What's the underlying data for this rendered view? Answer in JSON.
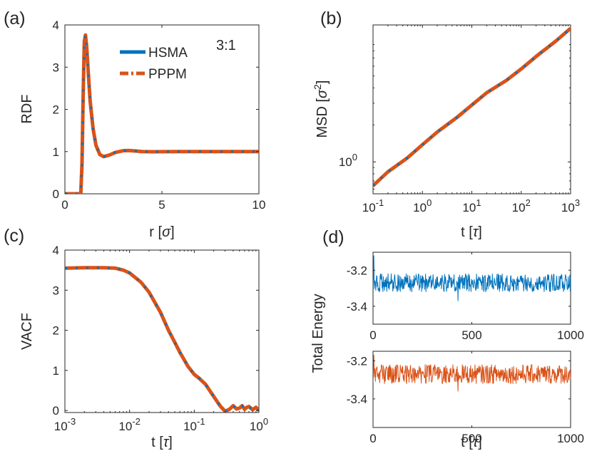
{
  "colors": {
    "hsma": "#0072BD",
    "pppm": "#D95319",
    "axis": "#262626"
  },
  "chart_data": [
    {
      "id": "a",
      "panel_label": "(a)",
      "type": "line",
      "annotation": "3:1",
      "xlabel_text": "r ",
      "xunit": "σ",
      "ylabel": "RDF",
      "xlim": [
        0,
        10
      ],
      "ylim": [
        0,
        4
      ],
      "xticks": [
        0,
        5,
        10
      ],
      "xtick_labels": [
        "0",
        "5",
        "10"
      ],
      "yticks": [
        0,
        1,
        2,
        3,
        4
      ],
      "ytick_labels": [
        "0",
        "1",
        "2",
        "3",
        "4"
      ],
      "legend": [
        "HSMA",
        "PPPM"
      ],
      "legend_position": "top-right",
      "series": [
        {
          "name": "PPPM",
          "style": "dashdot",
          "x": [
            0,
            0.7,
            0.82,
            0.88,
            0.94,
            1.0,
            1.06,
            1.12,
            1.2,
            1.3,
            1.45,
            1.6,
            1.8,
            2.0,
            2.3,
            2.6,
            3.0,
            3.3,
            3.6,
            4.0,
            4.5,
            5.0,
            6.0,
            7.0,
            8.0,
            9.0,
            10.0
          ],
          "y": [
            0,
            0,
            0.02,
            0.7,
            2.3,
            3.6,
            3.76,
            3.5,
            2.9,
            2.2,
            1.55,
            1.15,
            0.93,
            0.88,
            0.92,
            0.98,
            1.02,
            1.025,
            1.015,
            1.0,
            0.995,
            0.998,
            1.0,
            1.0,
            1.0,
            1.0,
            1.0
          ]
        },
        {
          "name": "HSMA",
          "style": "dotted",
          "x": [
            0,
            0.7,
            0.82,
            0.88,
            0.94,
            1.0,
            1.06,
            1.12,
            1.2,
            1.3,
            1.45,
            1.6,
            1.8,
            2.0,
            2.3,
            2.6,
            3.0,
            3.3,
            3.6,
            4.0,
            4.5,
            5.0,
            6.0,
            7.0,
            8.0,
            9.0,
            10.0
          ],
          "y": [
            0,
            0,
            0.02,
            0.7,
            2.3,
            3.6,
            3.76,
            3.5,
            2.9,
            2.2,
            1.55,
            1.15,
            0.93,
            0.88,
            0.92,
            0.98,
            1.02,
            1.025,
            1.015,
            1.0,
            0.995,
            0.998,
            1.0,
            1.0,
            1.0,
            1.0,
            1.0
          ]
        }
      ]
    },
    {
      "id": "b",
      "panel_label": "(b)",
      "type": "line",
      "xscale": "log",
      "yscale": "log",
      "xlabel_text": "t ",
      "xunit": "τ",
      "ylabel_text": "MSD ",
      "yunit": "σ",
      "yunit_exp": "2",
      "xlim": [
        0.1,
        1000
      ],
      "ylim": [
        0.55,
        13
      ],
      "xticks": [
        0.1,
        1,
        10,
        100,
        1000
      ],
      "xtick_bases": [
        "10",
        "10",
        "10",
        "10",
        "10"
      ],
      "xtick_exps": [
        "-1",
        "0",
        "1",
        "2",
        "3"
      ],
      "yticks": [
        1
      ],
      "ytick_bases": [
        "10"
      ],
      "ytick_exps": [
        "0"
      ],
      "series": [
        {
          "name": "PPPM",
          "style": "dashdot",
          "x": [
            0.1,
            0.2,
            0.5,
            1,
            2,
            5,
            10,
            20,
            50,
            100,
            200,
            500,
            1000
          ],
          "y": [
            0.64,
            0.83,
            1.08,
            1.38,
            1.75,
            2.3,
            2.9,
            3.65,
            4.6,
            5.7,
            7.2,
            9.6,
            12.2
          ]
        },
        {
          "name": "HSMA",
          "style": "dotted",
          "x": [
            0.1,
            0.2,
            0.5,
            1,
            2,
            5,
            10,
            20,
            50,
            100,
            200,
            500,
            1000
          ],
          "y": [
            0.64,
            0.83,
            1.08,
            1.38,
            1.75,
            2.3,
            2.9,
            3.65,
            4.6,
            5.7,
            7.2,
            9.6,
            12.2
          ]
        }
      ]
    },
    {
      "id": "c",
      "panel_label": "(c)",
      "type": "line",
      "xscale": "log",
      "xlabel_text": "t ",
      "xunit": "τ",
      "ylabel": "VACF",
      "xlim": [
        0.001,
        1
      ],
      "ylim": [
        -0.05,
        4
      ],
      "xticks": [
        0.001,
        0.01,
        0.1,
        1
      ],
      "xtick_bases": [
        "10",
        "10",
        "10",
        "10"
      ],
      "xtick_exps": [
        "-3",
        "-2",
        "-1",
        "0"
      ],
      "yticks": [
        0,
        1,
        2,
        3,
        4
      ],
      "ytick_labels": [
        "0",
        "1",
        "2",
        "3",
        "4"
      ],
      "series": [
        {
          "name": "PPPM",
          "style": "dashdot",
          "x": [
            0.001,
            0.002,
            0.004,
            0.006,
            0.008,
            0.01,
            0.015,
            0.02,
            0.03,
            0.04,
            0.05,
            0.06,
            0.08,
            0.1,
            0.12,
            0.15,
            0.2,
            0.25,
            0.3,
            0.35,
            0.4,
            0.45,
            0.5,
            0.55,
            0.6,
            0.65,
            0.7,
            0.8,
            0.9,
            1.0
          ],
          "y": [
            3.55,
            3.56,
            3.56,
            3.55,
            3.5,
            3.43,
            3.2,
            2.95,
            2.45,
            2.0,
            1.7,
            1.45,
            1.1,
            0.9,
            0.8,
            0.65,
            0.35,
            0.12,
            -0.02,
            0.03,
            0.12,
            0.04,
            0.06,
            0.12,
            0.03,
            0.08,
            0.1,
            0.02,
            0.08,
            0.0
          ]
        },
        {
          "name": "HSMA",
          "style": "dotted",
          "x": [
            0.001,
            0.002,
            0.004,
            0.006,
            0.008,
            0.01,
            0.015,
            0.02,
            0.03,
            0.04,
            0.05,
            0.06,
            0.08,
            0.1,
            0.12,
            0.15,
            0.2,
            0.25,
            0.3,
            0.35,
            0.4,
            0.45,
            0.5,
            0.55,
            0.6,
            0.65,
            0.7,
            0.8,
            0.9,
            1.0
          ],
          "y": [
            3.55,
            3.56,
            3.56,
            3.55,
            3.5,
            3.43,
            3.2,
            2.95,
            2.45,
            2.0,
            1.7,
            1.45,
            1.1,
            0.9,
            0.8,
            0.65,
            0.35,
            0.12,
            -0.02,
            0.03,
            0.12,
            0.04,
            0.06,
            0.12,
            0.03,
            0.08,
            0.1,
            0.02,
            0.08,
            0.0
          ]
        }
      ]
    },
    {
      "id": "d1",
      "panel_label": "(d)",
      "type": "line",
      "ylabel": "Total Energy",
      "xlim": [
        0,
        1000
      ],
      "ylim": [
        -3.5,
        -3.1
      ],
      "xticks": [
        0,
        500,
        1000
      ],
      "xtick_labels": [
        "0",
        "500",
        "1000"
      ],
      "yticks": [
        -3.2,
        -3.4
      ],
      "ytick_labels": [
        "-3.2",
        "-3.4"
      ],
      "series": [
        {
          "name": "HSMA",
          "style": "noisy",
          "mean": -3.27,
          "amplitude": 0.05,
          "spike_max": -3.12,
          "spike_min": -3.37,
          "n_points": 500
        }
      ]
    },
    {
      "id": "d2",
      "panel_label": "",
      "type": "line",
      "xlabel_text": "t ",
      "xunit": "τ",
      "xlim": [
        0,
        1000
      ],
      "ylim": [
        -3.55,
        -3.15
      ],
      "xticks": [
        0,
        500,
        1000
      ],
      "xtick_labels": [
        "0",
        "500",
        "1000"
      ],
      "yticks": [
        -3.2,
        -3.4
      ],
      "ytick_labels": [
        "-3.2",
        "-3.4"
      ],
      "series": [
        {
          "name": "PPPM",
          "style": "noisy",
          "mean": -3.27,
          "amplitude": 0.05,
          "spike_max": -3.17,
          "spike_min": -3.36,
          "n_points": 500
        }
      ]
    }
  ]
}
